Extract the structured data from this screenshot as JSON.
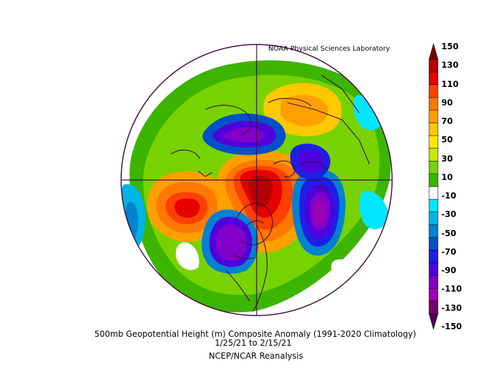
{
  "credit": "NOAA Physical Sciences Laboratory",
  "caption": {
    "line1": "500mb Geopotential Height (m) Composite Anomaly (1991-2020 Climatology)",
    "line2": "1/25/21   to 2/15/21",
    "line3": "NCEP/NCAR Reanalysis"
  },
  "colorbar": {
    "labels": [
      "150",
      "130",
      "110",
      "90",
      "70",
      "50",
      "30",
      "10",
      "-10",
      "-30",
      "-50",
      "-70",
      "-90",
      "-110",
      "-130",
      "-150"
    ],
    "colors": [
      "#7a0000",
      "#b40000",
      "#e60000",
      "#ff4000",
      "#ff7800",
      "#ffa000",
      "#ffc800",
      "#ffe600",
      "#c8e600",
      "#78d200",
      "#3cb400",
      "#ffffff",
      "#00e6ff",
      "#00b4e6",
      "#0082d2",
      "#0050c8",
      "#1e1ee6",
      "#5000dc",
      "#8200c8",
      "#a000b4",
      "#78006e",
      "#500050"
    ]
  },
  "map": {
    "projection": "north-polar-stereographic",
    "anomalies": [
      {
        "name": "positive-anomaly-greenland-canada",
        "value": 150
      },
      {
        "name": "positive-anomaly-north-pacific",
        "value": 150
      },
      {
        "name": "negative-anomaly-siberia",
        "value": -110
      },
      {
        "name": "negative-anomaly-north-america",
        "value": -110
      },
      {
        "name": "negative-anomaly-europe",
        "value": -130
      }
    ]
  }
}
